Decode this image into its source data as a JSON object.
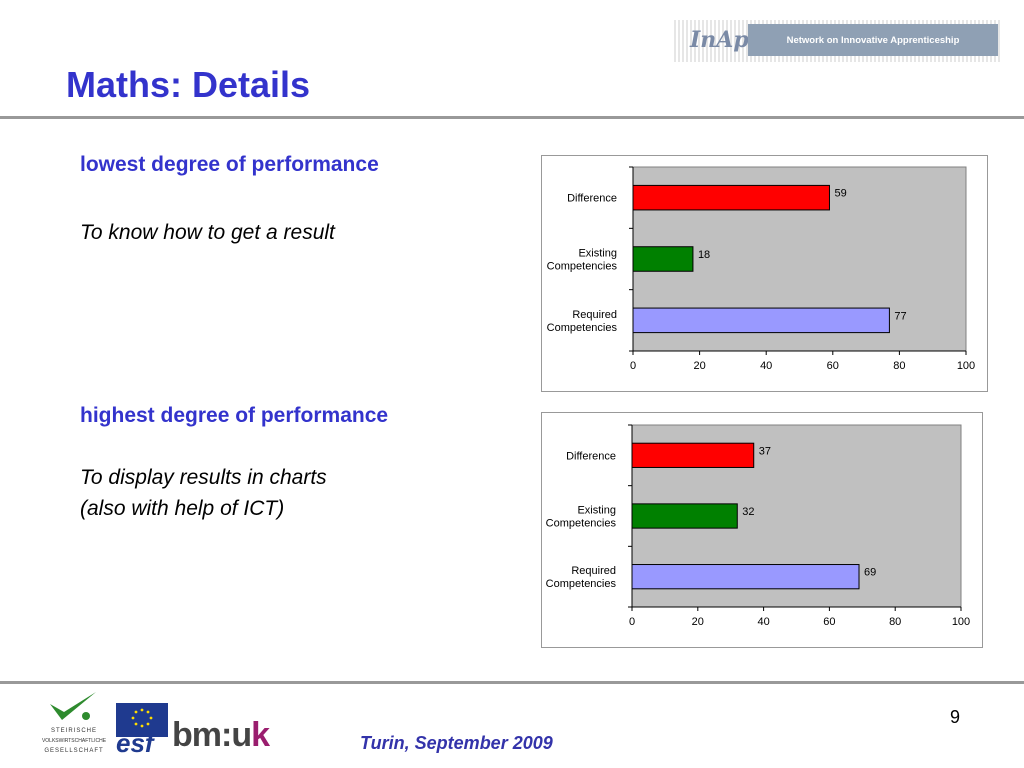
{
  "slide": {
    "title": "Maths: Details",
    "page_number": "9",
    "footer": "Turin, September 2009"
  },
  "logos": {
    "network_mark": "InAp",
    "network_banner": "Network on Innovative Apprenticeship",
    "steirische_lines": [
      "STEIRISCHE",
      "VOLKSWIRTSCHAFTLICHE",
      "GESELLSCHAFT"
    ],
    "esf": "esf",
    "bmuk_main": "bm:u",
    "bmuk_k": "k"
  },
  "sections": [
    {
      "heading": "lowest degree of performance",
      "description": [
        "To know how to get a result"
      ]
    },
    {
      "heading": "highest degree of performance",
      "description": [
        "To display results in charts",
        "(also with help of ICT)"
      ]
    }
  ],
  "chart_data": [
    {
      "type": "bar",
      "orientation": "horizontal",
      "categories": [
        "Difference",
        "Existing Competencies",
        "Required Competencies"
      ],
      "values": [
        59,
        18,
        77
      ],
      "colors": [
        "#ff0000",
        "#008000",
        "#9999ff"
      ],
      "xlim": [
        0,
        100
      ],
      "xticks": [
        0,
        20,
        40,
        60,
        80,
        100
      ],
      "plot_background": "#c0c0c0"
    },
    {
      "type": "bar",
      "orientation": "horizontal",
      "categories": [
        "Difference",
        "Existing Competencies",
        "Required Competencies"
      ],
      "values": [
        37,
        32,
        69
      ],
      "colors": [
        "#ff0000",
        "#008000",
        "#9999ff"
      ],
      "xlim": [
        0,
        100
      ],
      "xticks": [
        0,
        20,
        40,
        60,
        80,
        100
      ],
      "plot_background": "#c0c0c0"
    }
  ]
}
